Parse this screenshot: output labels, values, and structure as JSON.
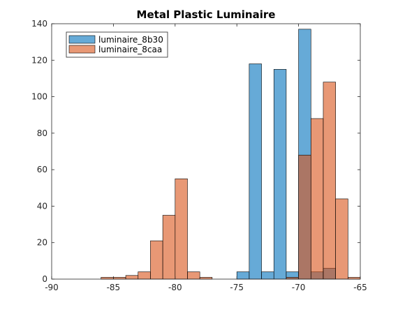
{
  "chart_data": {
    "type": "histogram",
    "title": "Metal Plastic Luminaire",
    "xlabel": "",
    "ylabel": "",
    "xlim": [
      -90,
      -65
    ],
    "ylim": [
      0,
      140
    ],
    "xticks": [
      -90,
      -85,
      -80,
      -75,
      -70,
      -65
    ],
    "yticks": [
      0,
      20,
      40,
      60,
      80,
      100,
      120,
      140
    ],
    "bin_width": 1,
    "legend_position": "top-left",
    "grid": false,
    "series": [
      {
        "name": "luminaire_8b30",
        "color": "#0072BD",
        "bins": [
          {
            "x0": -75,
            "x1": -74,
            "y": 4
          },
          {
            "x0": -74,
            "x1": -73,
            "y": 118
          },
          {
            "x0": -73,
            "x1": -72,
            "y": 4
          },
          {
            "x0": -72,
            "x1": -71,
            "y": 115
          },
          {
            "x0": -71,
            "x1": -70,
            "y": 4
          },
          {
            "x0": -70,
            "x1": -69,
            "y": 137
          },
          {
            "x0": -69,
            "x1": -68,
            "y": 4
          },
          {
            "x0": -68,
            "x1": -67,
            "y": 6
          }
        ]
      },
      {
        "name": "luminaire_8caa",
        "color": "#D95319",
        "bins": [
          {
            "x0": -86,
            "x1": -85,
            "y": 1
          },
          {
            "x0": -85,
            "x1": -84,
            "y": 1
          },
          {
            "x0": -84,
            "x1": -83,
            "y": 2
          },
          {
            "x0": -83,
            "x1": -82,
            "y": 4
          },
          {
            "x0": -82,
            "x1": -81,
            "y": 21
          },
          {
            "x0": -81,
            "x1": -80,
            "y": 35
          },
          {
            "x0": -80,
            "x1": -79,
            "y": 55
          },
          {
            "x0": -79,
            "x1": -78,
            "y": 4
          },
          {
            "x0": -78,
            "x1": -77,
            "y": 1
          },
          {
            "x0": -71,
            "x1": -70,
            "y": 1
          },
          {
            "x0": -70,
            "x1": -69,
            "y": 68
          },
          {
            "x0": -69,
            "x1": -68,
            "y": 88
          },
          {
            "x0": -68,
            "x1": -67,
            "y": 108
          },
          {
            "x0": -67,
            "x1": -66,
            "y": 44
          },
          {
            "x0": -66,
            "x1": -65,
            "y": 1
          }
        ]
      }
    ]
  }
}
